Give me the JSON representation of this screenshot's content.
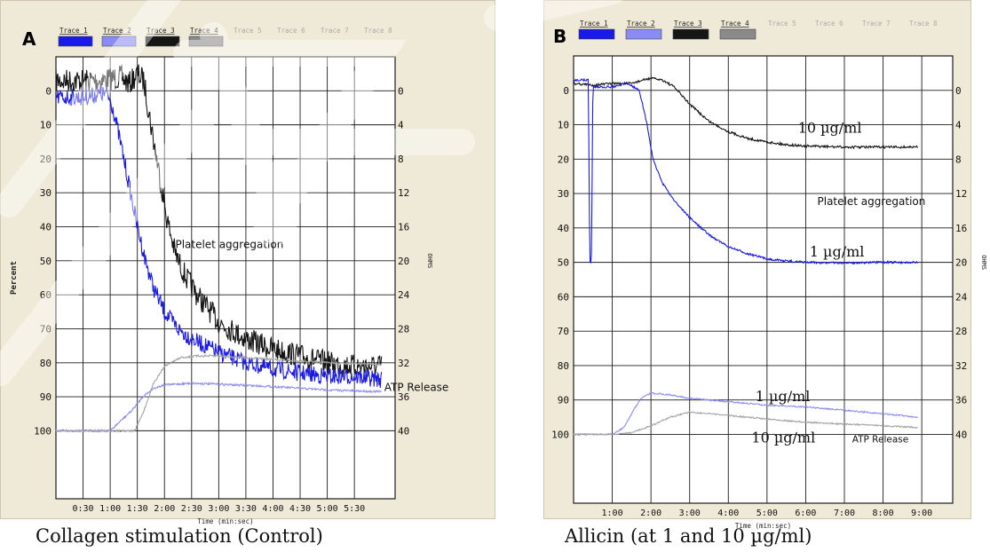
{
  "captions": {
    "a": "Collagen stimulation (Control)",
    "b": "Allicin (at 1 and 10 µg/ml)"
  },
  "colors": {
    "trace1": "#1a1ae8",
    "trace2": "#8b8bf5",
    "trace3": "#151515",
    "trace4": "#8a8a8a",
    "inactive": "#b7b7b7",
    "panel": "#efe9d8"
  },
  "chart_data": [
    {
      "type": "line",
      "panel_label": "A",
      "legend": [
        {
          "name": "Trace 1",
          "active": true,
          "color": "#1a1ae8"
        },
        {
          "name": "Trace 2",
          "active": true,
          "color": "#8b8bf5"
        },
        {
          "name": "Trace 3",
          "active": true,
          "color": "#151515"
        },
        {
          "name": "Trace 4",
          "active": true,
          "color": "#8a8a8a"
        },
        {
          "name": "Trace 5",
          "active": false
        },
        {
          "name": "Trace 6",
          "active": false
        },
        {
          "name": "Trace 7",
          "active": false
        },
        {
          "name": "Trace 8",
          "active": false
        }
      ],
      "xlabel": "Time (min:sec)",
      "ylabel": "Percent",
      "y2label": "OHMS",
      "xlim": [
        0,
        6.25
      ],
      "ylim": [
        -10,
        120
      ],
      "y_inverted": true,
      "x_ticks": [
        0.5,
        1.0,
        1.5,
        2.0,
        2.5,
        3.0,
        3.5,
        4.0,
        4.5,
        5.0,
        5.5
      ],
      "x_tick_labels": [
        "0:30",
        "1:00",
        "1:30",
        "2:00",
        "2:30",
        "3:00",
        "3:30",
        "4:00",
        "4:30",
        "5:00",
        "5:30"
      ],
      "y_ticks": [
        0,
        10,
        20,
        30,
        40,
        50,
        60,
        70,
        80,
        90,
        100
      ],
      "y_tick_labels": [
        "0",
        "10",
        "20",
        "30",
        "40",
        "50",
        "60",
        "70",
        "80",
        "90",
        "100"
      ],
      "y2_tick_labels": [
        "0",
        "4",
        "8",
        "12",
        "16",
        "20",
        "24",
        "28",
        "32",
        "36",
        "40"
      ],
      "grid": true,
      "annotations": [
        {
          "text": "Platelet aggregation",
          "x": 2.2,
          "y": 45
        },
        {
          "text": "ATP Release",
          "x": 6.05,
          "y": 87
        }
      ],
      "series": [
        {
          "color": "#151515",
          "noise": 3.5,
          "points": [
            [
              0,
              -3
            ],
            [
              0.8,
              -3
            ],
            [
              1.2,
              -4
            ],
            [
              1.35,
              -2
            ],
            [
              1.5,
              -5
            ],
            [
              1.62,
              -3
            ],
            [
              1.75,
              10
            ],
            [
              1.9,
              24
            ],
            [
              2.05,
              38
            ],
            [
              2.2,
              48
            ],
            [
              2.4,
              55
            ],
            [
              2.6,
              60
            ],
            [
              2.8,
              64
            ],
            [
              3.0,
              68
            ],
            [
              3.5,
              73
            ],
            [
              4.0,
              76
            ],
            [
              4.5,
              78
            ],
            [
              5.0,
              80
            ],
            [
              5.5,
              81
            ],
            [
              6.0,
              81
            ]
          ]
        },
        {
          "color": "#1a1ae8",
          "noise": 2.5,
          "points": [
            [
              0,
              2
            ],
            [
              0.5,
              2
            ],
            [
              0.8,
              1
            ],
            [
              0.95,
              1
            ],
            [
              1.05,
              5
            ],
            [
              1.2,
              16
            ],
            [
              1.35,
              28
            ],
            [
              1.5,
              40
            ],
            [
              1.65,
              50
            ],
            [
              1.8,
              58
            ],
            [
              2.0,
              65
            ],
            [
              2.25,
              70
            ],
            [
              2.5,
              73
            ],
            [
              3.0,
              77
            ],
            [
              3.5,
              80
            ],
            [
              4.0,
              82
            ],
            [
              4.5,
              83
            ],
            [
              5.0,
              84
            ],
            [
              5.5,
              84
            ],
            [
              6.0,
              85
            ]
          ]
        },
        {
          "color": "#8b8bf5",
          "noise": 0.3,
          "points": [
            [
              0,
              100
            ],
            [
              0.75,
              100
            ],
            [
              1.0,
              100
            ],
            [
              1.2,
              97
            ],
            [
              1.4,
              94
            ],
            [
              1.6,
              90
            ],
            [
              1.8,
              87.5
            ],
            [
              2.0,
              86.5
            ],
            [
              2.5,
              86
            ],
            [
              3.0,
              86.3
            ],
            [
              4.0,
              87
            ],
            [
              5.0,
              88
            ],
            [
              6.0,
              88.5
            ]
          ]
        },
        {
          "color": "#a3a3a3",
          "noise": 0.3,
          "points": [
            [
              0,
              100
            ],
            [
              1.2,
              100
            ],
            [
              1.45,
              100
            ],
            [
              1.6,
              95
            ],
            [
              1.8,
              86
            ],
            [
              2.0,
              81
            ],
            [
              2.3,
              78.5
            ],
            [
              2.6,
              78
            ],
            [
              3.0,
              78
            ],
            [
              4.0,
              79
            ],
            [
              5.0,
              80
            ],
            [
              6.0,
              80.5
            ]
          ]
        }
      ]
    },
    {
      "type": "line",
      "panel_label": "B",
      "legend": [
        {
          "name": "Trace 1",
          "active": true,
          "color": "#1a1ae8"
        },
        {
          "name": "Trace 2",
          "active": true,
          "color": "#8b8bf5"
        },
        {
          "name": "Trace 3",
          "active": true,
          "color": "#151515"
        },
        {
          "name": "Trace 4",
          "active": true,
          "color": "#8a8a8a"
        },
        {
          "name": "Trace 5",
          "active": false
        },
        {
          "name": "Trace 6",
          "active": false
        },
        {
          "name": "Trace 7",
          "active": false
        },
        {
          "name": "Trace 8",
          "active": false
        }
      ],
      "xlabel": "Time (min:sec)",
      "ylabel": "",
      "y2label": "OHMS",
      "xlim": [
        0,
        9.8
      ],
      "ylim": [
        -10,
        120
      ],
      "y_inverted": true,
      "x_ticks": [
        1,
        2,
        3,
        4,
        5,
        6,
        7,
        8,
        9
      ],
      "x_tick_labels": [
        "1:00",
        "2:00",
        "3:00",
        "4:00",
        "5:00",
        "6:00",
        "7:00",
        "8:00",
        "9:00"
      ],
      "y_ticks": [
        0,
        10,
        20,
        30,
        40,
        50,
        60,
        70,
        80,
        90,
        100
      ],
      "y_tick_labels": [
        "0",
        "10",
        "20",
        "30",
        "40",
        "50",
        "60",
        "70",
        "80",
        "90",
        "100"
      ],
      "y2_tick_labels": [
        "0",
        "4",
        "8",
        "12",
        "16",
        "20",
        "24",
        "28",
        "32",
        "36",
        "40"
      ],
      "grid": true,
      "annotations": [
        {
          "text": "10 µg/ml",
          "x": 5.8,
          "y": 11,
          "style": "serif"
        },
        {
          "text": "Platelet aggregation",
          "x": 6.3,
          "y": 32,
          "style": "sans"
        },
        {
          "text": "1 µg/ml",
          "x": 6.1,
          "y": 47,
          "style": "serif"
        },
        {
          "text": "1 µg/ml",
          "x": 4.7,
          "y": 89,
          "style": "serif"
        },
        {
          "text": "10 µg/ml",
          "x": 4.6,
          "y": 101,
          "style": "serif"
        },
        {
          "text": "ATP Release",
          "x": 7.2,
          "y": 101,
          "style": "sans-small"
        }
      ],
      "series": [
        {
          "color": "#151515",
          "noise": 0.35,
          "points": [
            [
              0,
              -2
            ],
            [
              0.5,
              -1.5
            ],
            [
              1.0,
              -2
            ],
            [
              1.5,
              -2
            ],
            [
              1.8,
              -3
            ],
            [
              2.0,
              -3.5
            ],
            [
              2.3,
              -3
            ],
            [
              2.6,
              -1
            ],
            [
              3.0,
              4
            ],
            [
              3.5,
              9
            ],
            [
              4.0,
              12
            ],
            [
              4.5,
              14
            ],
            [
              5.0,
              15
            ],
            [
              5.5,
              15.8
            ],
            [
              6.0,
              16.2
            ],
            [
              7.0,
              16.5
            ],
            [
              8.0,
              16.5
            ],
            [
              8.9,
              16.5
            ]
          ]
        },
        {
          "color": "#1a1ae8",
          "noise": 0.3,
          "points": [
            [
              0,
              -3
            ],
            [
              0.3,
              -3
            ],
            [
              0.38,
              -3
            ],
            [
              0.42,
              50
            ],
            [
              0.46,
              50
            ],
            [
              0.5,
              -1
            ],
            [
              1.0,
              -1
            ],
            [
              1.4,
              -2
            ],
            [
              1.7,
              0
            ],
            [
              1.9,
              10
            ],
            [
              2.05,
              20
            ],
            [
              2.3,
              27
            ],
            [
              2.6,
              32
            ],
            [
              3.0,
              37
            ],
            [
              3.5,
              42
            ],
            [
              4.0,
              45.5
            ],
            [
              4.5,
              47.5
            ],
            [
              5.0,
              49
            ],
            [
              5.5,
              49.6
            ],
            [
              6.0,
              50
            ],
            [
              7.0,
              50.2
            ],
            [
              8.0,
              50
            ],
            [
              8.9,
              50
            ]
          ]
        },
        {
          "color": "#8b8bf5",
          "noise": 0.2,
          "points": [
            [
              0,
              100
            ],
            [
              0.5,
              100
            ],
            [
              1.0,
              100
            ],
            [
              1.3,
              98
            ],
            [
              1.55,
              93
            ],
            [
              1.75,
              89.5
            ],
            [
              2.0,
              88
            ],
            [
              2.5,
              88.5
            ],
            [
              3.0,
              89.5
            ],
            [
              4.0,
              90.5
            ],
            [
              5.0,
              91.5
            ],
            [
              6.0,
              92
            ],
            [
              7.0,
              93
            ],
            [
              8.0,
              94
            ],
            [
              8.9,
              95
            ]
          ]
        },
        {
          "color": "#a3a3a3",
          "noise": 0.2,
          "points": [
            [
              0,
              100
            ],
            [
              1.0,
              100
            ],
            [
              1.5,
              99.5
            ],
            [
              2.0,
              97.5
            ],
            [
              2.5,
              95
            ],
            [
              3.0,
              93.5
            ],
            [
              3.5,
              94
            ],
            [
              4.0,
              94.5
            ],
            [
              5.0,
              95.5
            ],
            [
              6.0,
              96.5
            ],
            [
              7.0,
              97
            ],
            [
              8.0,
              97.5
            ],
            [
              8.9,
              98
            ]
          ]
        }
      ]
    }
  ]
}
